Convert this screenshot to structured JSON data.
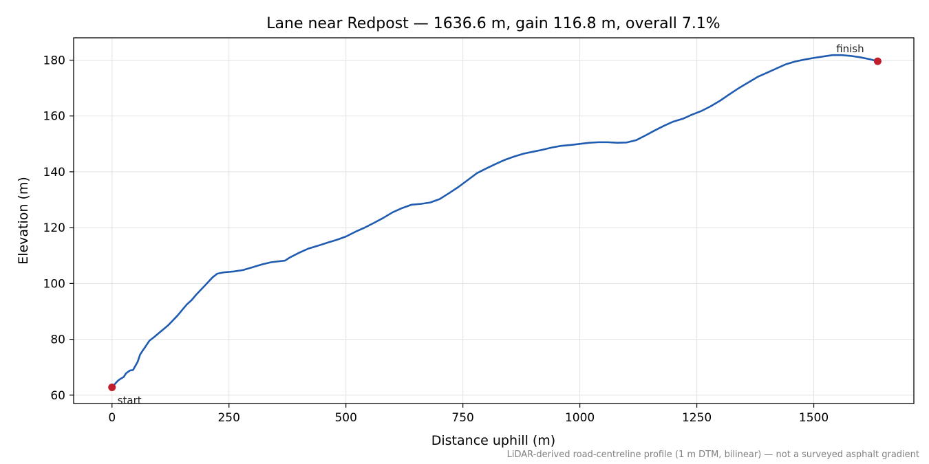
{
  "chart_data": {
    "type": "line",
    "title": "Lane near Redpost — 1636.6 m, gain 116.8 m, overall 7.1%",
    "xlabel": "Distance uphill (m)",
    "ylabel": "Elevation (m)",
    "xlim": [
      -82,
      1636.6
    ],
    "ylim": [
      57,
      188
    ],
    "x_ticks": [
      0,
      250,
      500,
      750,
      1000,
      1250,
      1500
    ],
    "y_ticks": [
      60,
      80,
      100,
      120,
      140,
      160,
      180
    ],
    "grid": true,
    "series": [
      {
        "color": "#1f5bb0",
        "x": [
          0,
          10,
          15,
          25,
          30,
          38,
          45,
          50,
          55,
          60,
          65,
          70,
          80,
          90,
          100,
          120,
          140,
          160,
          170,
          180,
          200,
          215,
          225,
          240,
          260,
          280,
          300,
          320,
          340,
          360,
          370,
          380,
          400,
          420,
          440,
          460,
          480,
          500,
          520,
          540,
          560,
          580,
          600,
          620,
          640,
          660,
          680,
          700,
          720,
          740,
          760,
          780,
          800,
          820,
          840,
          860,
          880,
          900,
          920,
          940,
          960,
          980,
          1000,
          1020,
          1040,
          1060,
          1080,
          1100,
          1120,
          1140,
          1160,
          1180,
          1200,
          1220,
          1240,
          1260,
          1280,
          1300,
          1320,
          1340,
          1360,
          1380,
          1400,
          1420,
          1440,
          1460,
          1480,
          1500,
          1520,
          1540,
          1560,
          1580,
          1600,
          1620,
          1636.6
        ],
        "y": [
          62.8,
          64.7,
          65.5,
          66.5,
          67.8,
          68.8,
          69.0,
          70.5,
          72.0,
          74.5,
          75.8,
          77.0,
          79.5,
          80.8,
          82.2,
          85.0,
          88.5,
          92.5,
          94.0,
          96.0,
          99.5,
          102.2,
          103.5,
          104.0,
          104.3,
          104.8,
          105.8,
          106.8,
          107.6,
          108.0,
          108.2,
          109.3,
          111.0,
          112.5,
          113.5,
          114.6,
          115.6,
          116.8,
          118.5,
          120.0,
          121.7,
          123.5,
          125.5,
          127.0,
          128.2,
          128.5,
          129.0,
          130.2,
          132.3,
          134.5,
          137.0,
          139.5,
          141.2,
          142.8,
          144.3,
          145.5,
          146.5,
          147.2,
          147.9,
          148.7,
          149.3,
          149.6,
          150.0,
          150.4,
          150.6,
          150.6,
          150.4,
          150.5,
          151.3,
          153.0,
          154.8,
          156.5,
          158.0,
          159.0,
          160.5,
          161.8,
          163.5,
          165.5,
          167.8,
          170.0,
          172.0,
          174.0,
          175.5,
          177.0,
          178.5,
          179.5,
          180.2,
          180.8,
          181.3,
          181.8,
          181.8,
          181.5,
          181.0,
          180.3,
          179.6
        ]
      }
    ],
    "markers": [
      {
        "label": "start",
        "x": 0,
        "y": 62.8,
        "color": "#c01f2b"
      },
      {
        "label": "finish",
        "x": 1636.6,
        "y": 179.6,
        "color": "#c01f2b"
      }
    ],
    "footnote": "LiDAR-derived road-centreline profile (1 m DTM, bilinear) — not a surveyed asphalt gradient"
  }
}
